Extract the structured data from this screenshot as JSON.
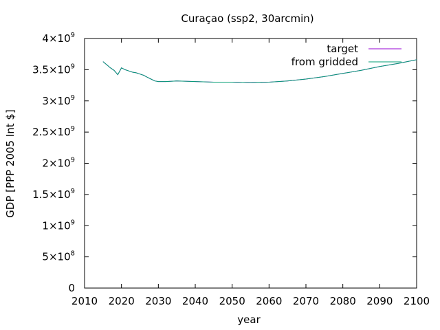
{
  "chart_data": {
    "type": "line",
    "title": "Curaçao (ssp2, 30arcmin)",
    "xlabel": "year",
    "ylabel": "GDP [PPP 2005 Int $]",
    "xlim": [
      2010,
      2100
    ],
    "ylim": [
      0,
      4000000000
    ],
    "x_ticks": [
      "2010",
      "2020",
      "2030",
      "2040",
      "2050",
      "2060",
      "2070",
      "2080",
      "2090",
      "2100"
    ],
    "y_ticks": [
      {
        "value": 0,
        "mant": "0",
        "exp": ""
      },
      {
        "value": 500000000,
        "mant": "5×10",
        "exp": "8"
      },
      {
        "value": 1000000000,
        "mant": "1×10",
        "exp": "9"
      },
      {
        "value": 1500000000,
        "mant": "1.5×10",
        "exp": "9"
      },
      {
        "value": 2000000000,
        "mant": "2×10",
        "exp": "9"
      },
      {
        "value": 2500000000,
        "mant": "2.5×10",
        "exp": "9"
      },
      {
        "value": 3000000000,
        "mant": "3×10",
        "exp": "9"
      },
      {
        "value": 3500000000,
        "mant": "3.5×10",
        "exp": "9"
      },
      {
        "value": 4000000000,
        "mant": "4×10",
        "exp": "9"
      }
    ],
    "grid": false,
    "legend_position": "top-right",
    "series": [
      {
        "name": "target",
        "color": "#9400d3",
        "x": [
          2015,
          2016,
          2017,
          2018,
          2019,
          2020,
          2021,
          2022,
          2023,
          2024,
          2025,
          2026,
          2027,
          2028,
          2029,
          2030,
          2032,
          2035,
          2040,
          2045,
          2050,
          2055,
          2060,
          2065,
          2070,
          2075,
          2080,
          2085,
          2090,
          2095,
          2100
        ],
        "y": [
          3630000000,
          3580000000,
          3530000000,
          3490000000,
          3420000000,
          3530000000,
          3500000000,
          3480000000,
          3460000000,
          3450000000,
          3430000000,
          3410000000,
          3380000000,
          3350000000,
          3320000000,
          3310000000,
          3310000000,
          3320000000,
          3310000000,
          3300000000,
          3300000000,
          3290000000,
          3300000000,
          3320000000,
          3350000000,
          3390000000,
          3440000000,
          3490000000,
          3550000000,
          3600000000,
          3660000000
        ]
      },
      {
        "name": "from gridded",
        "color": "#009e73",
        "x": [
          2015,
          2016,
          2017,
          2018,
          2019,
          2020,
          2021,
          2022,
          2023,
          2024,
          2025,
          2026,
          2027,
          2028,
          2029,
          2030,
          2032,
          2035,
          2040,
          2045,
          2050,
          2055,
          2060,
          2065,
          2070,
          2075,
          2080,
          2085,
          2090,
          2095,
          2100
        ],
        "y": [
          3630000000,
          3580000000,
          3530000000,
          3490000000,
          3420000000,
          3530000000,
          3500000000,
          3480000000,
          3460000000,
          3450000000,
          3430000000,
          3410000000,
          3380000000,
          3350000000,
          3320000000,
          3310000000,
          3310000000,
          3320000000,
          3310000000,
          3300000000,
          3300000000,
          3290000000,
          3300000000,
          3320000000,
          3350000000,
          3390000000,
          3440000000,
          3490000000,
          3550000000,
          3600000000,
          3660000000
        ]
      }
    ]
  }
}
